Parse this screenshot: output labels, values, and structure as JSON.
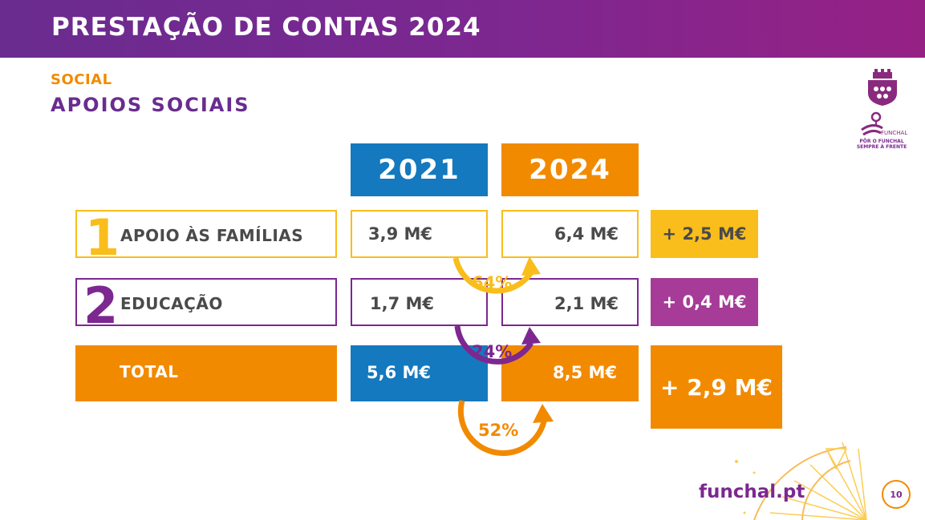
{
  "header": {
    "title": "PRESTAÇÃO DE CONTAS 2024"
  },
  "section": {
    "label": "SOCIAL",
    "title": "APOIOS SOCIAIS"
  },
  "table": {
    "years": [
      "2021",
      "2024"
    ],
    "rows": [
      {
        "number": "1",
        "label": "APOIO ÀS FAMÍLIAS",
        "v2021": "3,9 M€",
        "v2024": "6,4 M€",
        "diff": "+ 2,5 M€",
        "growth": "64%"
      },
      {
        "number": "2",
        "label": "EDUCAÇÃO",
        "v2021": "1,7 M€",
        "v2024": "2,1 M€",
        "diff": "+ 0,4 M€",
        "growth": "24%"
      }
    ],
    "total": {
      "label": "TOTAL",
      "v2021": "5,6 M€",
      "v2024": "8,5 M€",
      "diff": "+ 2,9 M€",
      "growth": "52%"
    }
  },
  "logo": {
    "caption_line1": "FUNCHAL",
    "caption_line2": "PÔR O FUNCHAL",
    "caption_line3": "SEMPRE À FRENTE"
  },
  "footer": {
    "site": "funchal.pt",
    "page_number": "10"
  },
  "colors": {
    "purple": "#7d2790",
    "orange": "#f28a00",
    "yellow": "#f9bd1c",
    "blue": "#1479be"
  }
}
